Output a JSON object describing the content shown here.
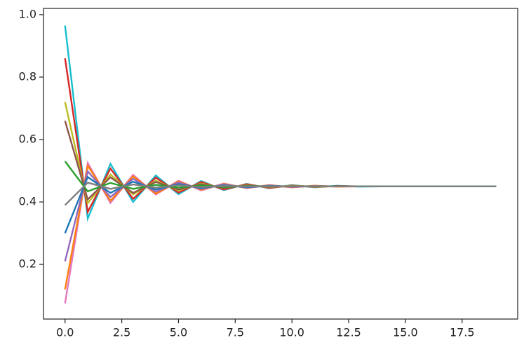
{
  "chart_data": {
    "type": "line",
    "x": [
      0,
      1,
      2,
      3,
      4,
      5,
      6,
      7,
      8,
      9,
      10,
      11,
      12,
      13,
      14,
      15,
      16,
      17,
      18,
      19
    ],
    "series": [
      {
        "color": "#17becf",
        "values": [
          0.965,
          0.347,
          0.522,
          0.4,
          0.485,
          0.425,
          0.467,
          0.438,
          0.458,
          0.444,
          0.454,
          0.447,
          0.452,
          0.449,
          0.45,
          0.45,
          0.45,
          0.45,
          0.45,
          0.45
        ]
      },
      {
        "color": "#e377c2",
        "values": [
          0.075,
          0.525,
          0.397,
          0.487,
          0.424,
          0.468,
          0.437,
          0.459,
          0.444,
          0.454,
          0.447,
          0.452,
          0.449,
          0.45,
          0.45,
          0.45,
          0.45,
          0.45,
          0.45,
          0.45
        ]
      },
      {
        "color": "#d62728",
        "values": [
          0.86,
          0.368,
          0.507,
          0.41,
          0.478,
          0.43,
          0.464,
          0.44,
          0.457,
          0.445,
          0.453,
          0.448,
          0.451,
          0.45,
          0.45,
          0.45,
          0.45,
          0.45,
          0.45,
          0.45
        ]
      },
      {
        "color": "#ff7f0e",
        "values": [
          0.12,
          0.516,
          0.404,
          0.482,
          0.427,
          0.466,
          0.439,
          0.458,
          0.445,
          0.454,
          0.447,
          0.452,
          0.449,
          0.45,
          0.45,
          0.45,
          0.45,
          0.45,
          0.45,
          0.45
        ]
      },
      {
        "color": "#bcbd22",
        "values": [
          0.72,
          0.396,
          0.488,
          0.424,
          0.468,
          0.437,
          0.459,
          0.444,
          0.454,
          0.447,
          0.452,
          0.449,
          0.45,
          0.45,
          0.45,
          0.45,
          0.45,
          0.45,
          0.45,
          0.45
        ]
      },
      {
        "color": "#9467bd",
        "values": [
          0.21,
          0.498,
          0.416,
          0.474,
          0.433,
          0.462,
          0.442,
          0.456,
          0.446,
          0.453,
          0.448,
          0.451,
          0.45,
          0.45,
          0.45,
          0.45,
          0.45,
          0.45,
          0.45,
          0.45
        ]
      },
      {
        "color": "#8c564b",
        "values": [
          0.66,
          0.408,
          0.479,
          0.429,
          0.464,
          0.44,
          0.457,
          0.445,
          0.453,
          0.448,
          0.451,
          0.45,
          0.45,
          0.45,
          0.45,
          0.45,
          0.45,
          0.45,
          0.45,
          0.45
        ]
      },
      {
        "color": "#1f77b4",
        "values": [
          0.3,
          0.48,
          0.429,
          0.465,
          0.44,
          0.457,
          0.445,
          0.453,
          0.448,
          0.451,
          0.45,
          0.45,
          0.45,
          0.45,
          0.45,
          0.45,
          0.45,
          0.45,
          0.45,
          0.45
        ]
      },
      {
        "color": "#2ca02c",
        "values": [
          0.53,
          0.434,
          0.461,
          0.442,
          0.455,
          0.446,
          0.453,
          0.448,
          0.451,
          0.45,
          0.45,
          0.45,
          0.45,
          0.45,
          0.45,
          0.45,
          0.45,
          0.45,
          0.45,
          0.45
        ]
      },
      {
        "color": "#7f7f7f",
        "values": [
          0.39,
          0.462,
          0.442,
          0.456,
          0.446,
          0.453,
          0.448,
          0.451,
          0.45,
          0.45,
          0.45,
          0.45,
          0.45,
          0.45,
          0.45,
          0.45,
          0.45,
          0.45,
          0.45,
          0.45
        ]
      }
    ],
    "xlim": [
      -0.95,
      19.95
    ],
    "xticks": [
      {
        "value": 0,
        "label": "0.0"
      },
      2.5,
      {
        "value": 5,
        "label": "5.0"
      },
      7.5,
      {
        "value": 10,
        "label": "10.0"
      },
      12.5,
      {
        "value": 15,
        "label": "15.0"
      },
      17.5
    ],
    "ylim": [
      0.025,
      1.02
    ],
    "yticks": [
      0.2,
      0.4,
      0.6,
      0.8,
      {
        "value": 1,
        "label": "1.0"
      }
    ],
    "grid": false
  }
}
